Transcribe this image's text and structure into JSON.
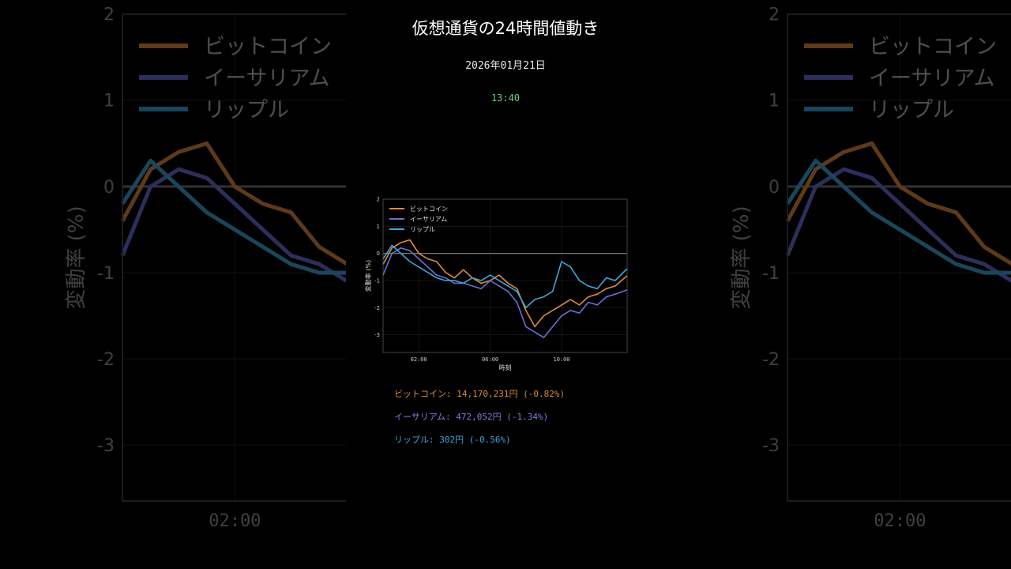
{
  "title": "仮想通貨の24時間値動き",
  "date": "2026年01月21日",
  "time": "13:40",
  "chart_data": {
    "type": "line",
    "ylabel": "変動率 (%)",
    "xlabel": "時刻",
    "x_ticks": [
      "02:00",
      "06:00",
      "10:00"
    ],
    "x_tick_values": [
      2,
      6,
      10
    ],
    "y_ticks": [
      "-3",
      "-2",
      "-1",
      "0",
      "1",
      "2"
    ],
    "y_tick_values": [
      -3,
      -2,
      -1,
      0,
      1,
      2
    ],
    "xlim": [
      0.0,
      13.67
    ],
    "ylim": [
      -3.65,
      2.0
    ],
    "grid": true,
    "zero_line": true,
    "legend_position": "top-left",
    "x": [
      0.0,
      0.5,
      1.0,
      1.5,
      2.0,
      2.5,
      3.0,
      3.5,
      4.0,
      4.5,
      5.0,
      5.5,
      6.0,
      6.5,
      7.0,
      7.5,
      8.0,
      8.5,
      9.0,
      9.5,
      10.0,
      10.5,
      11.0,
      11.5,
      12.0,
      12.5,
      13.0,
      13.67
    ],
    "series": [
      {
        "name": "ビットコイン",
        "color": "#e08a3c",
        "values": [
          -0.4,
          0.2,
          0.4,
          0.5,
          0.0,
          -0.2,
          -0.3,
          -0.7,
          -0.9,
          -0.6,
          -0.9,
          -1.1,
          -1.0,
          -0.8,
          -1.1,
          -1.3,
          -2.1,
          -2.7,
          -2.3,
          -2.1,
          -1.9,
          -1.7,
          -1.9,
          -1.6,
          -1.5,
          -1.3,
          -1.2,
          -0.82
        ]
      },
      {
        "name": "イーサリアム",
        "color": "#6b6fd4",
        "values": [
          -0.8,
          0.0,
          0.2,
          0.1,
          -0.2,
          -0.5,
          -0.8,
          -0.9,
          -1.1,
          -1.1,
          -1.2,
          -1.3,
          -1.0,
          -1.2,
          -1.4,
          -1.8,
          -2.7,
          -2.9,
          -3.1,
          -2.7,
          -2.3,
          -2.1,
          -2.2,
          -1.8,
          -1.9,
          -1.6,
          -1.5,
          -1.34
        ]
      },
      {
        "name": "リップル",
        "color": "#3fa7d9",
        "values": [
          -0.2,
          0.3,
          0.0,
          -0.3,
          -0.5,
          -0.7,
          -0.9,
          -1.0,
          -1.0,
          -1.1,
          -0.9,
          -1.0,
          -0.8,
          -1.0,
          -1.2,
          -1.4,
          -2.0,
          -1.7,
          -1.6,
          -1.4,
          -0.3,
          -0.5,
          -1.0,
          -1.2,
          -1.3,
          -0.9,
          -1.0,
          -0.56
        ]
      }
    ]
  },
  "prices": [
    {
      "text": "ビットコイン: 14,170,231円 (-0.82%)",
      "color": "#e08a3c"
    },
    {
      "text": "イーサリアム: 472,052円 (-1.34%)",
      "color": "#7b7fe0"
    },
    {
      "text": "リップル: 302円 (-0.56%)",
      "color": "#3fa7d9"
    }
  ]
}
